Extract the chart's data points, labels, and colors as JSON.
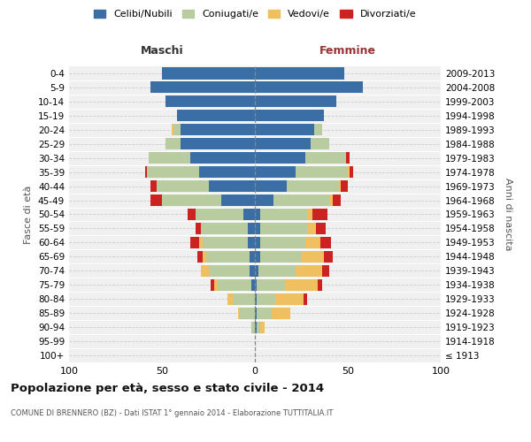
{
  "age_groups": [
    "100+",
    "95-99",
    "90-94",
    "85-89",
    "80-84",
    "75-79",
    "70-74",
    "65-69",
    "60-64",
    "55-59",
    "50-54",
    "45-49",
    "40-44",
    "35-39",
    "30-34",
    "25-29",
    "20-24",
    "15-19",
    "10-14",
    "5-9",
    "0-4"
  ],
  "birth_years": [
    "≤ 1913",
    "1914-1918",
    "1919-1923",
    "1924-1928",
    "1929-1933",
    "1934-1938",
    "1939-1943",
    "1944-1948",
    "1949-1953",
    "1954-1958",
    "1959-1963",
    "1964-1968",
    "1969-1973",
    "1974-1978",
    "1979-1983",
    "1984-1988",
    "1989-1993",
    "1994-1998",
    "1999-2003",
    "2004-2008",
    "2009-2013"
  ],
  "male": {
    "celibi": [
      0,
      0,
      0,
      0,
      0,
      2,
      3,
      3,
      4,
      4,
      6,
      18,
      25,
      30,
      35,
      40,
      40,
      42,
      48,
      56,
      50
    ],
    "coniugati": [
      0,
      0,
      2,
      8,
      12,
      18,
      22,
      23,
      24,
      25,
      26,
      32,
      28,
      28,
      22,
      8,
      4,
      0,
      0,
      0,
      0
    ],
    "vedovi": [
      0,
      0,
      0,
      1,
      3,
      2,
      4,
      2,
      2,
      0,
      0,
      0,
      0,
      0,
      0,
      0,
      1,
      0,
      0,
      0,
      0
    ],
    "divorziati": [
      0,
      0,
      0,
      0,
      0,
      2,
      0,
      3,
      5,
      3,
      4,
      6,
      3,
      1,
      0,
      0,
      0,
      0,
      0,
      0,
      0
    ]
  },
  "female": {
    "nubili": [
      0,
      0,
      1,
      1,
      1,
      1,
      2,
      3,
      3,
      3,
      3,
      10,
      17,
      22,
      27,
      30,
      32,
      37,
      44,
      58,
      48
    ],
    "coniugate": [
      0,
      0,
      2,
      8,
      10,
      15,
      20,
      22,
      24,
      25,
      25,
      30,
      28,
      28,
      22,
      10,
      4,
      0,
      0,
      0,
      0
    ],
    "vedove": [
      0,
      0,
      2,
      10,
      15,
      18,
      14,
      12,
      8,
      5,
      3,
      2,
      1,
      1,
      0,
      0,
      0,
      0,
      0,
      0,
      0
    ],
    "divorziate": [
      0,
      0,
      0,
      0,
      2,
      2,
      4,
      5,
      6,
      5,
      8,
      4,
      4,
      2,
      2,
      0,
      0,
      0,
      0,
      0,
      0
    ]
  },
  "colors": {
    "celibi": "#3a6ea5",
    "coniugati": "#b8cca0",
    "vedovi": "#f0c060",
    "divorziati": "#cc2222"
  },
  "xlim": 100,
  "title": "Popolazione per età, sesso e stato civile - 2014",
  "subtitle": "COMUNE DI BRENNERO (BZ) - Dati ISTAT 1° gennaio 2014 - Elaborazione TUTTITALIA.IT",
  "ylabel_left": "Fasce di età",
  "ylabel_right": "Anni di nascita",
  "xlabel_left": "Maschi",
  "xlabel_right": "Femmine",
  "legend_labels": [
    "Celibi/Nubili",
    "Coniugati/e",
    "Vedovi/e",
    "Divorziati/e"
  ],
  "xticks": [
    -100,
    -50,
    0,
    50,
    100
  ]
}
